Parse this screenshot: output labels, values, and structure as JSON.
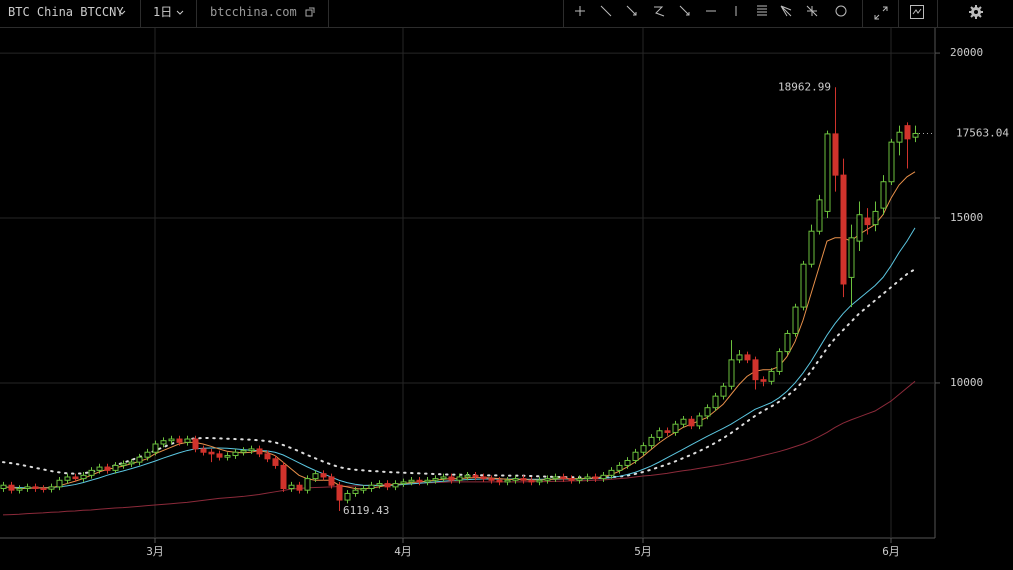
{
  "toolbar": {
    "symbol": "BTC China BTCCNY",
    "interval": "1日",
    "source": "btcchina.com"
  },
  "chart_data": {
    "type": "candlestick",
    "categories": [
      null,
      null,
      null,
      null,
      null,
      null,
      null,
      null,
      null,
      null,
      null,
      null,
      null,
      null,
      null,
      null,
      null,
      null,
      null,
      "3月",
      null,
      null,
      null,
      null,
      null,
      null,
      null,
      null,
      null,
      null,
      null,
      null,
      null,
      null,
      null,
      null,
      null,
      null,
      null,
      null,
      null,
      null,
      null,
      null,
      null,
      null,
      null,
      null,
      null,
      null,
      "4月",
      null,
      null,
      null,
      null,
      null,
      null,
      null,
      null,
      null,
      null,
      null,
      null,
      null,
      null,
      null,
      null,
      null,
      null,
      null,
      null,
      null,
      null,
      null,
      null,
      null,
      null,
      null,
      null,
      null,
      "5月",
      null,
      null,
      null,
      null,
      null,
      null,
      null,
      null,
      null,
      null,
      null,
      null,
      null,
      null,
      null,
      null,
      null,
      null,
      null,
      null,
      null,
      null,
      null,
      null,
      null,
      null,
      null,
      null,
      null,
      null,
      "6月",
      null,
      null,
      null
    ],
    "open": [
      6800,
      6900,
      6750,
      6800,
      6850,
      6800,
      6780,
      6850,
      7050,
      7150,
      7100,
      7200,
      7350,
      7450,
      7350,
      7500,
      7550,
      7600,
      7750,
      7900,
      8150,
      8250,
      8300,
      8200,
      8300,
      8000,
      7900,
      7850,
      7750,
      7800,
      7900,
      7950,
      8000,
      7850,
      7700,
      7500,
      6800,
      6900,
      6750,
      7100,
      7250,
      7150,
      6900,
      6450,
      6650,
      6750,
      6800,
      6900,
      6950,
      6850,
      6950,
      7000,
      7050,
      7000,
      7050,
      7100,
      7150,
      7050,
      7150,
      7200,
      7150,
      7100,
      7050,
      7000,
      7050,
      7100,
      7050,
      7000,
      7050,
      7100,
      7150,
      7100,
      7050,
      7100,
      7150,
      7100,
      7200,
      7350,
      7500,
      7650,
      7900,
      8100,
      8350,
      8550,
      8500,
      8750,
      8900,
      8700,
      9000,
      9250,
      9600,
      9900,
      10700,
      10850,
      10700,
      10100,
      10050,
      10350,
      10950,
      11500,
      12300,
      13600,
      14600,
      15200,
      17550,
      16300,
      13200,
      14300,
      15000,
      14800,
      15300,
      16100,
      17300,
      17800,
      17450
    ],
    "high": [
      7000,
      7000,
      6900,
      6950,
      6950,
      6900,
      6950,
      7150,
      7250,
      7250,
      7300,
      7450,
      7550,
      7550,
      7600,
      7650,
      7700,
      7850,
      8000,
      8250,
      8350,
      8400,
      8400,
      8400,
      8400,
      8100,
      8000,
      7950,
      7900,
      8000,
      8050,
      8100,
      8100,
      7950,
      7800,
      7600,
      7000,
      7000,
      7200,
      7350,
      7350,
      7250,
      7000,
      6750,
      6850,
      6900,
      7000,
      7050,
      7050,
      7050,
      7100,
      7150,
      7150,
      7150,
      7200,
      7250,
      7250,
      7250,
      7300,
      7300,
      7250,
      7200,
      7150,
      7150,
      7200,
      7200,
      7150,
      7150,
      7200,
      7250,
      7250,
      7200,
      7200,
      7250,
      7250,
      7300,
      7450,
      7600,
      7750,
      8000,
      8200,
      8450,
      8650,
      8650,
      8850,
      9000,
      9000,
      9100,
      9350,
      9700,
      10000,
      11300,
      11000,
      10950,
      10800,
      10200,
      10450,
      11050,
      11600,
      12400,
      13700,
      14800,
      15700,
      17650,
      18962.99,
      16800,
      14800,
      15500,
      15300,
      15500,
      16300,
      17400,
      17800,
      17900,
      17800
    ],
    "low": [
      6700,
      6650,
      6650,
      6700,
      6700,
      6680,
      6680,
      6750,
      6950,
      7000,
      7000,
      7100,
      7250,
      7250,
      7250,
      7400,
      7450,
      7500,
      7650,
      7800,
      8050,
      8150,
      8100,
      8100,
      7900,
      7800,
      7600,
      7650,
      7650,
      7700,
      7800,
      7850,
      7750,
      7600,
      7400,
      6700,
      6700,
      6650,
      6650,
      7000,
      7050,
      6800,
      6119.43,
      6350,
      6550,
      6650,
      6700,
      6800,
      6750,
      6750,
      6850,
      6900,
      6900,
      6900,
      6950,
      7000,
      6950,
      6950,
      7050,
      7050,
      7000,
      6950,
      6900,
      6900,
      6950,
      6950,
      6900,
      6900,
      6950,
      7000,
      7000,
      6950,
      6950,
      7000,
      7000,
      7000,
      7100,
      7250,
      7400,
      7550,
      7800,
      8000,
      8250,
      8400,
      8400,
      8650,
      8600,
      8600,
      8900,
      9150,
      9500,
      9800,
      10600,
      10600,
      9800,
      9900,
      9950,
      10250,
      10850,
      11400,
      12200,
      13500,
      14500,
      15000,
      15800,
      12600,
      12300,
      14000,
      14500,
      14600,
      15100,
      16000,
      16900,
      16500,
      17300
    ],
    "close": [
      6900,
      6750,
      6800,
      6850,
      6800,
      6780,
      6850,
      7050,
      7150,
      7100,
      7200,
      7350,
      7450,
      7350,
      7500,
      7550,
      7600,
      7750,
      7900,
      8150,
      8250,
      8300,
      8200,
      8300,
      8000,
      7900,
      7850,
      7750,
      7800,
      7900,
      7950,
      8000,
      7850,
      7700,
      7500,
      6800,
      6900,
      6750,
      7100,
      7250,
      7150,
      6900,
      6450,
      6650,
      6750,
      6800,
      6900,
      6950,
      6850,
      6950,
      7000,
      7050,
      7000,
      7050,
      7100,
      7150,
      7050,
      7150,
      7200,
      7150,
      7100,
      7050,
      7000,
      7050,
      7100,
      7050,
      7000,
      7050,
      7100,
      7150,
      7100,
      7050,
      7100,
      7150,
      7100,
      7200,
      7350,
      7500,
      7650,
      7900,
      8100,
      8350,
      8550,
      8500,
      8750,
      8900,
      8700,
      9000,
      9250,
      9600,
      9900,
      10700,
      10850,
      10700,
      10100,
      10050,
      10350,
      10950,
      11500,
      12300,
      13600,
      14600,
      15550,
      17550,
      16300,
      13000,
      14400,
      15100,
      14800,
      15200,
      16100,
      17300,
      17600,
      17400,
      17563.04
    ],
    "up_color": "#6cc13e",
    "down_color": "#d0332c",
    "series": [
      {
        "color": "#8c2a3a",
        "style": "solid",
        "values": [
          6000,
          6010,
          6020,
          6040,
          6050,
          6060,
          6080,
          6090,
          6110,
          6120,
          6140,
          6150,
          6170,
          6190,
          6210,
          6220,
          6240,
          6260,
          6280,
          6300,
          6320,
          6340,
          6360,
          6380,
          6410,
          6440,
          6470,
          6500,
          6520,
          6540,
          6560,
          6590,
          6620,
          6660,
          6700,
          6740,
          6780,
          6800,
          6820,
          6830,
          6840,
          6850,
          6860,
          6870,
          6880,
          6890,
          6900,
          6910,
          6920,
          6930,
          6940,
          6950,
          6960,
          6970,
          6980,
          6990,
          7000,
          7000,
          7000,
          7000,
          7000,
          7000,
          7000,
          7000,
          7000,
          7000,
          7010,
          7010,
          7010,
          7020,
          7020,
          7030,
          7030,
          7040,
          7050,
          7060,
          7080,
          7100,
          7120,
          7150,
          7180,
          7200,
          7230,
          7260,
          7300,
          7340,
          7370,
          7410,
          7450,
          7490,
          7530,
          7580,
          7630,
          7680,
          7740,
          7800,
          7860,
          7920,
          7990,
          8070,
          8150,
          8250,
          8370,
          8500,
          8650,
          8780,
          8880,
          8970,
          9060,
          9150,
          9300,
          9450,
          9650,
          9850,
          10050
        ]
      },
      {
        "color": "#dddddd",
        "style": "dotted",
        "values": [
          7600,
          7570,
          7530,
          7480,
          7430,
          7380,
          7330,
          7290,
          7260,
          7250,
          7260,
          7300,
          7360,
          7430,
          7500,
          7580,
          7660,
          7750,
          7850,
          7950,
          8050,
          8150,
          8230,
          8290,
          8320,
          8330,
          8330,
          8320,
          8310,
          8300,
          8290,
          8280,
          8260,
          8240,
          8200,
          8120,
          8030,
          7930,
          7820,
          7720,
          7620,
          7530,
          7450,
          7400,
          7370,
          7350,
          7330,
          7320,
          7300,
          7290,
          7280,
          7270,
          7260,
          7250,
          7240,
          7230,
          7220,
          7220,
          7210,
          7210,
          7200,
          7200,
          7200,
          7190,
          7190,
          7190,
          7180,
          7170,
          7160,
          7150,
          7150,
          7140,
          7140,
          7130,
          7130,
          7130,
          7140,
          7160,
          7190,
          7240,
          7300,
          7370,
          7450,
          7530,
          7620,
          7720,
          7820,
          7930,
          8050,
          8180,
          8320,
          8480,
          8650,
          8830,
          9000,
          9150,
          9280,
          9430,
          9600,
          9800,
          10050,
          10350,
          10700,
          11050,
          11350,
          11600,
          11850,
          12100,
          12300,
          12500,
          12700,
          12900,
          13100,
          13300,
          13450
        ]
      },
      {
        "color": "#5bc6e0",
        "style": "solid",
        "values": [
          6850,
          6840,
          6830,
          6820,
          6820,
          6820,
          6830,
          6850,
          6880,
          6920,
          6980,
          7050,
          7120,
          7200,
          7270,
          7330,
          7400,
          7470,
          7550,
          7630,
          7720,
          7800,
          7880,
          7950,
          8000,
          8020,
          8030,
          8030,
          8020,
          8000,
          7980,
          7960,
          7950,
          7940,
          7900,
          7820,
          7700,
          7580,
          7460,
          7350,
          7250,
          7150,
          7050,
          6980,
          6930,
          6900,
          6890,
          6890,
          6890,
          6900,
          6920,
          6940,
          6960,
          6980,
          7000,
          7020,
          7040,
          7060,
          7070,
          7080,
          7090,
          7090,
          7090,
          7090,
          7090,
          7080,
          7080,
          7080,
          7080,
          7080,
          7090,
          7090,
          7090,
          7100,
          7100,
          7110,
          7130,
          7170,
          7220,
          7290,
          7380,
          7480,
          7600,
          7730,
          7860,
          7990,
          8120,
          8250,
          8380,
          8500,
          8620,
          8750,
          8900,
          9050,
          9200,
          9300,
          9400,
          9550,
          9750,
          10000,
          10300,
          10650,
          11050,
          11450,
          11800,
          12100,
          12350,
          12550,
          12750,
          12950,
          13200,
          13550,
          13950,
          14300,
          14700
        ]
      },
      {
        "color": "#e8904a",
        "style": "solid",
        "values": [
          6850,
          6830,
          6800,
          6800,
          6820,
          6820,
          6820,
          6880,
          6950,
          7020,
          7100,
          7200,
          7300,
          7380,
          7430,
          7480,
          7550,
          7620,
          7700,
          7850,
          7950,
          8050,
          8150,
          8200,
          8200,
          8150,
          8080,
          8000,
          7930,
          7900,
          7880,
          7900,
          7950,
          7900,
          7800,
          7600,
          7400,
          7200,
          7100,
          7050,
          7050,
          7050,
          6900,
          6850,
          6800,
          6780,
          6820,
          6850,
          6900,
          6920,
          6950,
          6980,
          7000,
          7020,
          7050,
          7080,
          7100,
          7100,
          7120,
          7130,
          7130,
          7120,
          7100,
          7080,
          7070,
          7070,
          7060,
          7060,
          7070,
          7090,
          7100,
          7100,
          7100,
          7110,
          7120,
          7150,
          7220,
          7320,
          7450,
          7600,
          7780,
          7980,
          8180,
          8350,
          8500,
          8650,
          8750,
          8850,
          8950,
          9150,
          9350,
          9650,
          9950,
          10200,
          10350,
          10400,
          10400,
          10500,
          10800,
          11250,
          11900,
          12700,
          13500,
          14300,
          14400,
          14400,
          14300,
          14500,
          14650,
          14800,
          15100,
          15600,
          16000,
          16250,
          16400
        ]
      }
    ],
    "ylim": [
      5300,
      20760
    ],
    "yticks": [
      10000,
      15000,
      20000
    ],
    "grid": true
  }
}
